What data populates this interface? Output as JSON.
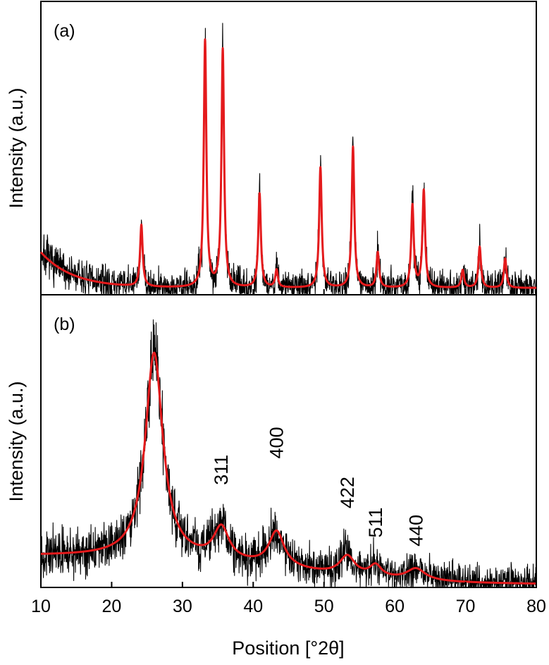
{
  "chart_data": [
    {
      "type": "line",
      "panel_label": "(a)",
      "ylabel": "Intensity (a.u.)",
      "xlim": [
        10,
        80
      ],
      "ylim": [
        0,
        100
      ],
      "grid": false,
      "colors": {
        "measured": "#000000",
        "fit": "#e41a1c"
      },
      "background": {
        "value_at_x10": 14.5,
        "decay_length": 4.5,
        "floor": 2.3
      },
      "noise_amplitude": 4.5,
      "peaks": [
        {
          "x": 24.2,
          "height": 21,
          "width": 0.22
        },
        {
          "x": 33.2,
          "height": 84,
          "width": 0.22
        },
        {
          "x": 35.7,
          "height": 81,
          "width": 0.22
        },
        {
          "x": 40.9,
          "height": 32,
          "width": 0.22
        },
        {
          "x": 43.3,
          "height": 6,
          "width": 0.22
        },
        {
          "x": 49.5,
          "height": 41,
          "width": 0.22
        },
        {
          "x": 54.1,
          "height": 48,
          "width": 0.22
        },
        {
          "x": 57.6,
          "height": 12,
          "width": 0.22
        },
        {
          "x": 62.5,
          "height": 28,
          "width": 0.22
        },
        {
          "x": 64.1,
          "height": 33,
          "width": 0.22
        },
        {
          "x": 69.6,
          "height": 6,
          "width": 0.22
        },
        {
          "x": 72.0,
          "height": 14,
          "width": 0.22
        },
        {
          "x": 75.6,
          "height": 10,
          "width": 0.22
        }
      ]
    },
    {
      "type": "line",
      "panel_label": "(b)",
      "ylabel": "Intensity (a.u.)",
      "xlabel": "Position [°2θ]",
      "xlim": [
        10,
        80
      ],
      "ylim": [
        0,
        100
      ],
      "grid": false,
      "xticks": [
        10,
        20,
        30,
        40,
        50,
        60,
        70,
        80
      ],
      "colors": {
        "measured": "#000000",
        "fit": "#e41a1c"
      },
      "background": {
        "level_start": 11,
        "level_end": 1,
        "drop_center": 45,
        "drop_width": 9
      },
      "noise_amplitude": 5,
      "peaks": [
        {
          "x": 26.0,
          "height": 70,
          "width": 1.5
        },
        {
          "x": 35.5,
          "height": 11,
          "width": 1.3
        },
        {
          "x": 43.3,
          "height": 12,
          "width": 1.3
        },
        {
          "x": 53.3,
          "height": 6.5,
          "width": 1.3
        },
        {
          "x": 57.3,
          "height": 4,
          "width": 1.0
        },
        {
          "x": 63.0,
          "height": 4,
          "width": 1.6
        }
      ],
      "peak_labels": [
        {
          "text": "311",
          "x": 35.5,
          "y": 35
        },
        {
          "text": "400",
          "x": 43.3,
          "y": 44
        },
        {
          "text": "422",
          "x": 53.3,
          "y": 27
        },
        {
          "text": "511",
          "x": 57.3,
          "y": 17
        },
        {
          "text": "440",
          "x": 63.0,
          "y": 14
        }
      ]
    }
  ]
}
